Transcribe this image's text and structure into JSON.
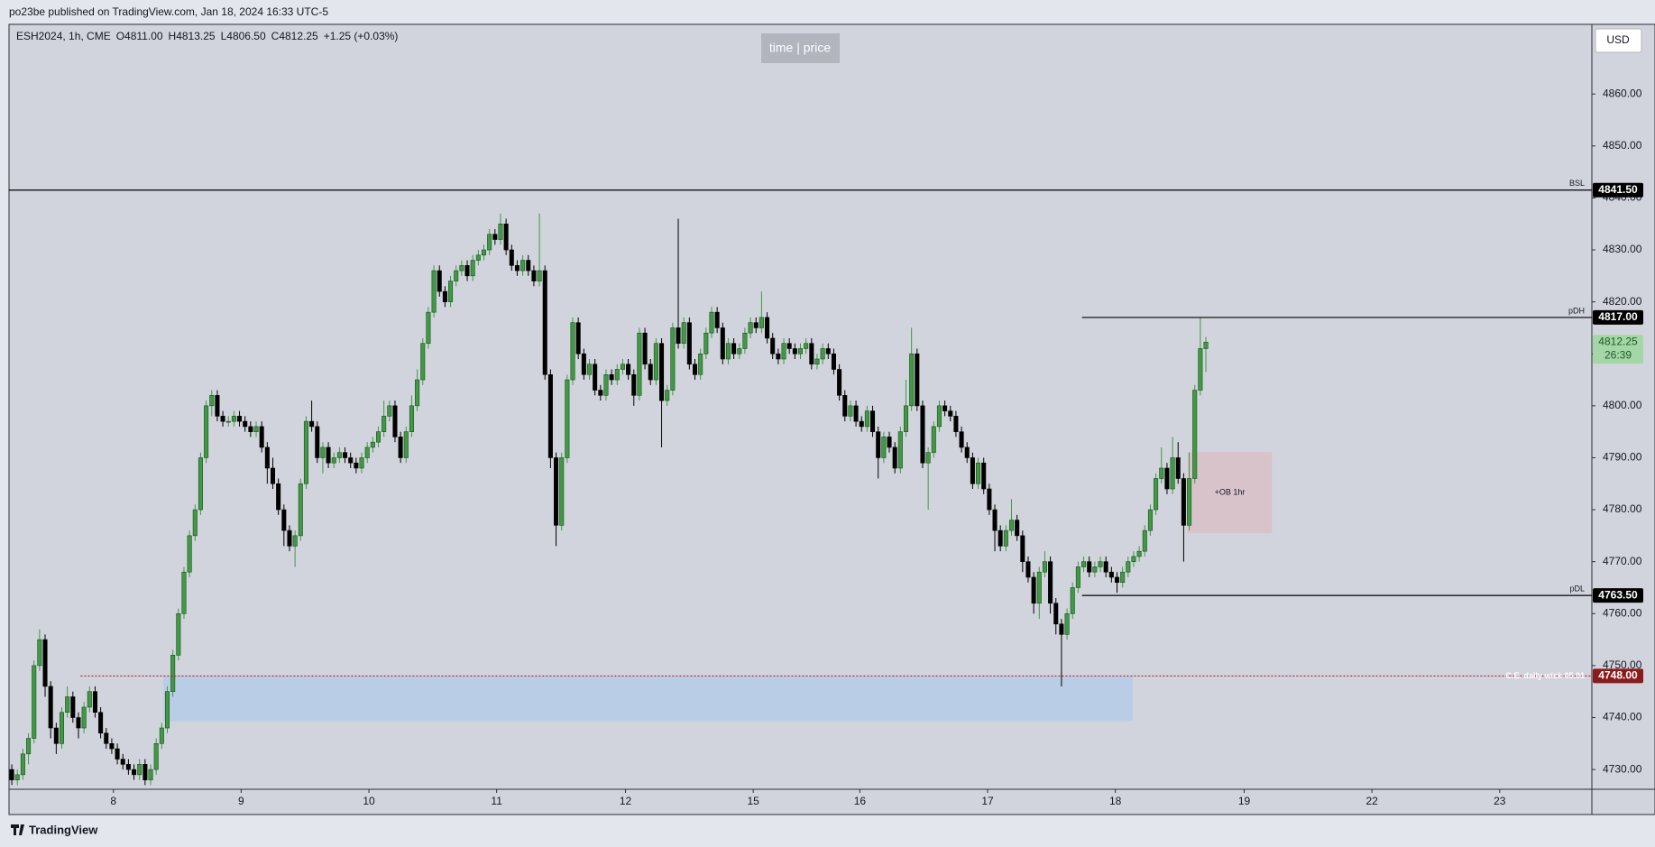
{
  "header": {
    "title": "po23be published on TradingView.com, Jan 18, 2024 16:33 UTC-5"
  },
  "footer": {
    "brand": "TradingView"
  },
  "chart_data": {
    "type": "candlestick",
    "symbol": "ESH2024, 1h, CME",
    "ohlc_legend": {
      "open": "O4811.00",
      "high": "H4813.25",
      "low": "L4806.50",
      "close": "C4812.25",
      "change": "+1.25 (+0.03%)"
    },
    "watermark": "time | price",
    "currency": "USD",
    "up_color": "#3f9a43",
    "down_color": "#000000",
    "candles": [
      [
        4730,
        4731,
        4727,
        4728
      ],
      [
        4728,
        4730,
        4727,
        4729
      ],
      [
        4729,
        4734,
        4728,
        4733
      ],
      [
        4733,
        4737,
        4731,
        4736
      ],
      [
        4736,
        4751,
        4735,
        4750
      ],
      [
        4750,
        4757,
        4749,
        4755
      ],
      [
        4755,
        4756,
        4744,
        4746
      ],
      [
        4746,
        4747,
        4736,
        4738
      ],
      [
        4738,
        4739,
        4733,
        4735
      ],
      [
        4735,
        4742,
        4734,
        4741
      ],
      [
        4741,
        4746,
        4740,
        4744
      ],
      [
        4744,
        4745,
        4739,
        4740
      ],
      [
        4740,
        4741,
        4736,
        4738
      ],
      [
        4738,
        4743,
        4737,
        4742
      ],
      [
        4742,
        4746,
        4741,
        4745
      ],
      [
        4745,
        4746,
        4740,
        4741
      ],
      [
        4741,
        4742,
        4736,
        4737
      ],
      [
        4737,
        4738,
        4734,
        4735
      ],
      [
        4735,
        4736,
        4733,
        4734
      ],
      [
        4734,
        4735,
        4731,
        4732
      ],
      [
        4732,
        4733,
        4730,
        4731
      ],
      [
        4731,
        4732,
        4729,
        4730
      ],
      [
        4730,
        4731,
        4728,
        4729
      ],
      [
        4729,
        4732,
        4728,
        4731
      ],
      [
        4731,
        4732,
        4727,
        4728
      ],
      [
        4728,
        4731,
        4727,
        4730
      ],
      [
        4730,
        4736,
        4729,
        4735
      ],
      [
        4735,
        4739,
        4734,
        4738
      ],
      [
        4738,
        4746,
        4737,
        4745
      ],
      [
        4745,
        4753,
        4744,
        4752
      ],
      [
        4752,
        4761,
        4751,
        4760
      ],
      [
        4760,
        4769,
        4759,
        4768
      ],
      [
        4768,
        4776,
        4767,
        4775
      ],
      [
        4775,
        4781,
        4774,
        4780
      ],
      [
        4780,
        4791,
        4779,
        4790
      ],
      [
        4790,
        4801,
        4789,
        4800
      ],
      [
        4800,
        4803,
        4798,
        4802
      ],
      [
        4802,
        4803,
        4797,
        4798
      ],
      [
        4798,
        4799,
        4796,
        4797
      ],
      [
        4797,
        4798,
        4796,
        4797
      ],
      [
        4797,
        4799,
        4796,
        4798
      ],
      [
        4798,
        4799,
        4796,
        4797
      ],
      [
        4797,
        4798,
        4795,
        4796
      ],
      [
        4796,
        4797,
        4794,
        4795
      ],
      [
        4795,
        4797,
        4794,
        4796
      ],
      [
        4796,
        4797,
        4791,
        4792
      ],
      [
        4792,
        4793,
        4785,
        4788
      ],
      [
        4788,
        4790,
        4784,
        4785
      ],
      [
        4785,
        4786,
        4779,
        4780
      ],
      [
        4780,
        4781,
        4773,
        4776
      ],
      [
        4776,
        4777,
        4772,
        4773
      ],
      [
        4773,
        4776,
        4769,
        4775
      ],
      [
        4775,
        4786,
        4774,
        4785
      ],
      [
        4785,
        4798,
        4784,
        4797
      ],
      [
        4797,
        4801,
        4795,
        4796
      ],
      [
        4796,
        4797,
        4789,
        4790
      ],
      [
        4790,
        4793,
        4787,
        4792
      ],
      [
        4792,
        4793,
        4788,
        4789
      ],
      [
        4789,
        4791,
        4788,
        4790
      ],
      [
        4790,
        4792,
        4789,
        4791
      ],
      [
        4791,
        4792,
        4789,
        4790
      ],
      [
        4790,
        4791,
        4788,
        4789
      ],
      [
        4789,
        4790,
        4787,
        4788
      ],
      [
        4788,
        4791,
        4787,
        4790
      ],
      [
        4790,
        4793,
        4789,
        4792
      ],
      [
        4792,
        4794,
        4791,
        4793
      ],
      [
        4793,
        4796,
        4792,
        4795
      ],
      [
        4795,
        4801,
        4794,
        4798
      ],
      [
        4798,
        4801,
        4797,
        4800
      ],
      [
        4800,
        4801,
        4793,
        4794
      ],
      [
        4794,
        4795,
        4789,
        4790
      ],
      [
        4790,
        4796,
        4789,
        4795
      ],
      [
        4795,
        4802,
        4794,
        4800
      ],
      [
        4800,
        4807,
        4799,
        4805
      ],
      [
        4805,
        4813,
        4804,
        4812
      ],
      [
        4812,
        4819,
        4811,
        4818
      ],
      [
        4818,
        4827,
        4817,
        4826
      ],
      [
        4826,
        4827,
        4821,
        4822
      ],
      [
        4822,
        4823,
        4819,
        4820
      ],
      [
        4820,
        4825,
        4819,
        4824
      ],
      [
        4824,
        4827,
        4823,
        4826
      ],
      [
        4826,
        4828,
        4825,
        4827
      ],
      [
        4827,
        4828,
        4824,
        4825
      ],
      [
        4825,
        4829,
        4824,
        4828
      ],
      [
        4828,
        4830,
        4827,
        4829
      ],
      [
        4829,
        4831,
        4828,
        4830
      ],
      [
        4830,
        4834,
        4829,
        4833
      ],
      [
        4833,
        4834,
        4831,
        4832
      ],
      [
        4832,
        4837,
        4831,
        4835
      ],
      [
        4835,
        4836,
        4829,
        4830
      ],
      [
        4830,
        4831,
        4826,
        4827
      ],
      [
        4827,
        4828,
        4825,
        4826
      ],
      [
        4826,
        4829,
        4825,
        4828
      ],
      [
        4828,
        4829,
        4825,
        4826
      ],
      [
        4826,
        4827,
        4823,
        4824
      ],
      [
        4824,
        4837,
        4823,
        4826
      ],
      [
        4826,
        4827,
        4805,
        4806
      ],
      [
        4806,
        4807,
        4788,
        4790
      ],
      [
        4790,
        4791,
        4773,
        4777
      ],
      [
        4777,
        4791,
        4776,
        4790
      ],
      [
        4790,
        4806,
        4789,
        4805
      ],
      [
        4805,
        4817,
        4804,
        4816
      ],
      [
        4816,
        4817,
        4809,
        4810
      ],
      [
        4810,
        4811,
        4805,
        4806
      ],
      [
        4806,
        4809,
        4805,
        4808
      ],
      [
        4808,
        4809,
        4802,
        4803
      ],
      [
        4803,
        4804,
        4801,
        4802
      ],
      [
        4802,
        4807,
        4801,
        4806
      ],
      [
        4806,
        4807,
        4804,
        4805
      ],
      [
        4805,
        4808,
        4804,
        4807
      ],
      [
        4807,
        4809,
        4806,
        4808
      ],
      [
        4808,
        4809,
        4805,
        4806
      ],
      [
        4806,
        4807,
        4800,
        4802
      ],
      [
        4802,
        4815,
        4801,
        4814
      ],
      [
        4814,
        4815,
        4807,
        4808
      ],
      [
        4808,
        4809,
        4804,
        4805
      ],
      [
        4805,
        4813,
        4804,
        4812
      ],
      [
        4812,
        4813,
        4792,
        4801
      ],
      [
        4801,
        4804,
        4800,
        4803
      ],
      [
        4803,
        4816,
        4802,
        4815
      ],
      [
        4815,
        4836,
        4811,
        4812
      ],
      [
        4812,
        4817,
        4811,
        4816
      ],
      [
        4816,
        4817,
        4807,
        4808
      ],
      [
        4808,
        4809,
        4805,
        4806
      ],
      [
        4806,
        4811,
        4805,
        4810
      ],
      [
        4810,
        4815,
        4809,
        4814
      ],
      [
        4814,
        4819,
        4813,
        4818
      ],
      [
        4818,
        4819,
        4814,
        4815
      ],
      [
        4815,
        4816,
        4808,
        4809
      ],
      [
        4809,
        4813,
        4808,
        4812
      ],
      [
        4812,
        4813,
        4809,
        4810
      ],
      [
        4810,
        4812,
        4809,
        4811
      ],
      [
        4811,
        4815,
        4810,
        4814
      ],
      [
        4814,
        4817,
        4813,
        4816
      ],
      [
        4816,
        4817,
        4814,
        4815
      ],
      [
        4815,
        4822,
        4814,
        4817
      ],
      [
        4817,
        4818,
        4812,
        4813
      ],
      [
        4813,
        4814,
        4809,
        4810
      ],
      [
        4810,
        4811,
        4808,
        4809
      ],
      [
        4809,
        4813,
        4808,
        4812
      ],
      [
        4812,
        4813,
        4810,
        4811
      ],
      [
        4811,
        4812,
        4809,
        4810
      ],
      [
        4810,
        4812,
        4809,
        4811
      ],
      [
        4811,
        4813,
        4810,
        4812
      ],
      [
        4812,
        4813,
        4807,
        4808
      ],
      [
        4808,
        4810,
        4807,
        4809
      ],
      [
        4809,
        4812,
        4808,
        4811
      ],
      [
        4811,
        4812,
        4809,
        4810
      ],
      [
        4810,
        4811,
        4806,
        4807
      ],
      [
        4807,
        4808,
        4801,
        4802
      ],
      [
        4802,
        4803,
        4797,
        4798
      ],
      [
        4798,
        4801,
        4797,
        4800
      ],
      [
        4800,
        4801,
        4796,
        4797
      ],
      [
        4797,
        4798,
        4795,
        4796
      ],
      [
        4796,
        4800,
        4795,
        4799
      ],
      [
        4799,
        4800,
        4794,
        4795
      ],
      [
        4795,
        4796,
        4786,
        4790
      ],
      [
        4790,
        4795,
        4789,
        4794
      ],
      [
        4794,
        4795,
        4791,
        4792
      ],
      [
        4792,
        4793,
        4787,
        4788
      ],
      [
        4788,
        4796,
        4787,
        4795
      ],
      [
        4795,
        4805,
        4794,
        4800
      ],
      [
        4800,
        4815,
        4799,
        4810
      ],
      [
        4810,
        4811,
        4799,
        4800
      ],
      [
        4800,
        4801,
        4788,
        4789
      ],
      [
        4789,
        4792,
        4780,
        4791
      ],
      [
        4791,
        4797,
        4790,
        4796
      ],
      [
        4796,
        4801,
        4795,
        4800
      ],
      [
        4800,
        4801,
        4798,
        4799
      ],
      [
        4799,
        4800,
        4797,
        4798
      ],
      [
        4798,
        4799,
        4794,
        4795
      ],
      [
        4795,
        4796,
        4791,
        4792
      ],
      [
        4792,
        4793,
        4789,
        4790
      ],
      [
        4790,
        4791,
        4784,
        4785
      ],
      [
        4785,
        4790,
        4784,
        4789
      ],
      [
        4789,
        4790,
        4783,
        4784
      ],
      [
        4784,
        4785,
        4779,
        4780
      ],
      [
        4780,
        4781,
        4772,
        4776
      ],
      [
        4776,
        4777,
        4772,
        4773
      ],
      [
        4773,
        4777,
        4772,
        4776
      ],
      [
        4776,
        4782,
        4775,
        4778
      ],
      [
        4778,
        4779,
        4774,
        4775
      ],
      [
        4775,
        4776,
        4768,
        4770
      ],
      [
        4770,
        4771,
        4766,
        4767
      ],
      [
        4767,
        4768,
        4760,
        4762
      ],
      [
        4762,
        4769,
        4759,
        4768
      ],
      [
        4768,
        4772,
        4767,
        4770
      ],
      [
        4770,
        4771,
        4760,
        4762
      ],
      [
        4762,
        4763,
        4756,
        4758
      ],
      [
        4758,
        4759,
        4746,
        4756
      ],
      [
        4756,
        4761,
        4755,
        4760
      ],
      [
        4760,
        4766,
        4759,
        4765
      ],
      [
        4765,
        4770,
        4764,
        4769
      ],
      [
        4769,
        4771,
        4768,
        4770
      ],
      [
        4770,
        4771,
        4767,
        4768
      ],
      [
        4768,
        4770,
        4767,
        4769
      ],
      [
        4769,
        4771,
        4768,
        4770
      ],
      [
        4770,
        4771,
        4767,
        4768
      ],
      [
        4768,
        4769,
        4766,
        4767
      ],
      [
        4767,
        4768,
        4764,
        4766
      ],
      [
        4766,
        4769,
        4765,
        4768
      ],
      [
        4768,
        4771,
        4767,
        4770
      ],
      [
        4770,
        4772,
        4769,
        4771
      ],
      [
        4771,
        4773,
        4770,
        4772
      ],
      [
        4772,
        4777,
        4771,
        4776
      ],
      [
        4776,
        4781,
        4775,
        4780
      ],
      [
        4780,
        4787,
        4779,
        4786
      ],
      [
        4786,
        4792,
        4785,
        4788
      ],
      [
        4788,
        4789,
        4783,
        4784
      ],
      [
        4784,
        4794,
        4783,
        4790
      ],
      [
        4790,
        4793,
        4785,
        4786
      ],
      [
        4786,
        4787,
        4770,
        4777
      ],
      [
        4777,
        4791,
        4776,
        4786
      ],
      [
        4786,
        4804,
        4785,
        4803
      ],
      [
        4803,
        4817,
        4802,
        4811
      ],
      [
        4811,
        4813.25,
        4806.5,
        4812.25
      ]
    ],
    "xlim": [
      0,
      285
    ],
    "xticks": [
      {
        "value": 18.8,
        "label": "8"
      },
      {
        "value": 41.8,
        "label": "9"
      },
      {
        "value": 64.8,
        "label": "10"
      },
      {
        "value": 87.8,
        "label": "11"
      },
      {
        "value": 111,
        "label": "12"
      },
      {
        "value": 134,
        "label": "15"
      },
      {
        "value": 153.2,
        "label": "16"
      },
      {
        "value": 176.2,
        "label": "17"
      },
      {
        "value": 199.2,
        "label": "18"
      },
      {
        "value": 222.4,
        "label": "19"
      },
      {
        "value": 245.4,
        "label": "22"
      },
      {
        "value": 268.4,
        "label": "23"
      }
    ],
    "ylim": [
      4726.2,
      4873.4
    ],
    "yticks": [
      {
        "value": 4730,
        "label": "4730.00"
      },
      {
        "value": 4740,
        "label": "4740.00"
      },
      {
        "value": 4750,
        "label": "4750.00"
      },
      {
        "value": 4760,
        "label": "4760.00"
      },
      {
        "value": 4770,
        "label": "4770.00"
      },
      {
        "value": 4780,
        "label": "4780.00"
      },
      {
        "value": 4790,
        "label": "4790.00"
      },
      {
        "value": 4800,
        "label": "4800.00"
      },
      {
        "value": 4810,
        "label": "4810.00"
      },
      {
        "value": 4820,
        "label": "4820.00"
      },
      {
        "value": 4830,
        "label": "4830.00"
      },
      {
        "value": 4840,
        "label": "4840.00"
      },
      {
        "value": 4850,
        "label": "4850.00"
      },
      {
        "value": 4860,
        "label": "4860.00"
      }
    ],
    "levels": [
      {
        "name": "BSL",
        "value": 4841.5,
        "label": "4841.50",
        "x_start": 0,
        "color": "#000000",
        "dashed": false,
        "tag_color": "#000000"
      },
      {
        "name": "pDH",
        "value": 4817,
        "label": "4817.00",
        "x_start": 193.2,
        "color": "#000000",
        "dashed": false,
        "tag_color": "#000000"
      },
      {
        "name": "pDL",
        "value": 4763.5,
        "label": "4763.50",
        "x_start": 193.2,
        "color": "#000000",
        "dashed": false,
        "tag_color": "#000000"
      },
      {
        "name": "C.E. daily wick 05.01",
        "value": 4748,
        "label": "4748.00",
        "x_start": 12.9,
        "color": "#b22222",
        "dashed": true,
        "tag_color": "#8b1a1a"
      }
    ],
    "zones": [
      {
        "x": [
          27.8,
          202.3
        ],
        "y": [
          4739.3,
          4748
        ],
        "color": "#b5cbe8"
      },
      {
        "name": "+OB 1hr",
        "x": [
          212.2,
          227.4
        ],
        "y": [
          4775.5,
          4791.1
        ],
        "color": "#d9bfc8"
      }
    ],
    "last_price": {
      "value": 4812.25,
      "label": "4812.25",
      "countdown": "26:39",
      "color": "#a5d6a7"
    }
  }
}
